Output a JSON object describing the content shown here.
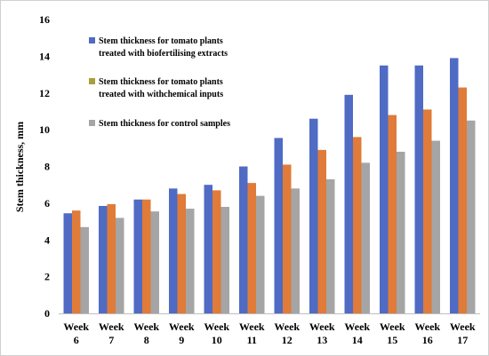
{
  "chart_data": {
    "type": "bar",
    "title": "",
    "xlabel": "",
    "ylabel": "Stem thickness, mm",
    "ylim": [
      0,
      16
    ],
    "yticks": [
      0,
      2,
      4,
      6,
      8,
      10,
      12,
      14,
      16
    ],
    "grid": false,
    "legend_position": "top-left",
    "categories": [
      [
        "Week",
        "6"
      ],
      [
        "Week",
        "7"
      ],
      [
        "Week",
        "8"
      ],
      [
        "Week",
        "9"
      ],
      [
        "Week",
        "10"
      ],
      [
        "Week",
        "11"
      ],
      [
        "Week",
        "12"
      ],
      [
        "Week",
        "13"
      ],
      [
        "Week",
        "14"
      ],
      [
        "Week",
        "15"
      ],
      [
        "Week",
        "16"
      ],
      [
        "Week",
        "17"
      ]
    ],
    "series": [
      {
        "name": "Stem thickness for tomato plants treated with biofertilising extracts",
        "legend_lines": [
          "Stem thickness for tomato plants",
          "treated with biofertilising extracts"
        ],
        "color": "#4F6BC4",
        "values": [
          5.45,
          5.85,
          6.2,
          6.8,
          7.0,
          8.0,
          9.55,
          10.6,
          11.9,
          13.5,
          13.5,
          13.9
        ]
      },
      {
        "name": "Stem thickness for tomato plants treated with withchemical inputs",
        "legend_lines": [
          "Stem thickness for tomato plants",
          "treated with withchemical inputs"
        ],
        "color": "#E07B39",
        "legend_color": "#A8A03C",
        "values": [
          5.6,
          5.95,
          6.2,
          6.5,
          6.7,
          7.1,
          8.1,
          8.9,
          9.6,
          10.8,
          11.1,
          12.3
        ]
      },
      {
        "name": "Stem thickness for control samples",
        "legend_lines": [
          "Stem thickness for control samples"
        ],
        "color": "#A5A5A5",
        "values": [
          4.7,
          5.2,
          5.55,
          5.7,
          5.8,
          6.4,
          6.8,
          7.3,
          8.2,
          8.8,
          9.4,
          10.5
        ]
      }
    ]
  }
}
